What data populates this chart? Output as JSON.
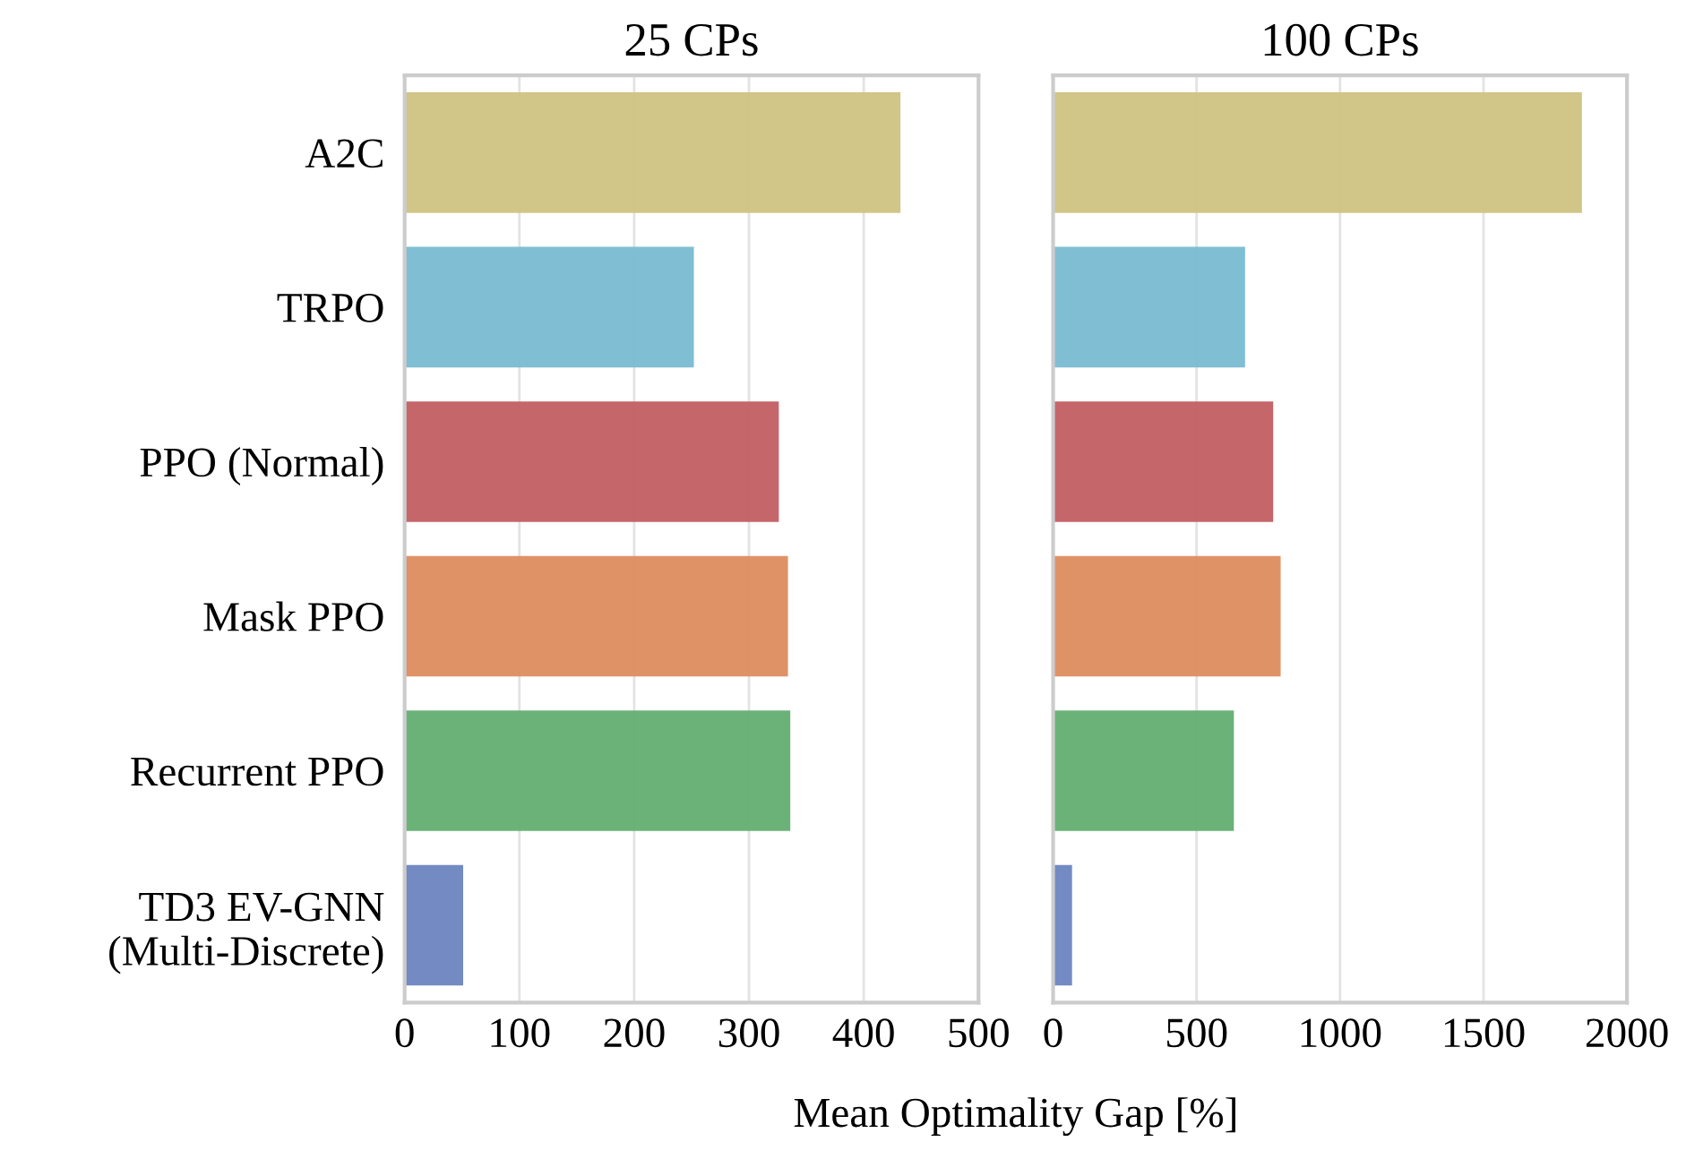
{
  "chart_data": [
    {
      "type": "bar",
      "orientation": "horizontal",
      "title": "25 CPs",
      "xlabel": "Mean Optimality Gap [%]",
      "categories": [
        "A2C",
        "TRPO",
        "PPO (Normal)",
        "Mask PPO",
        "Recurrent PPO",
        "TD3 EV-GNN\n(Multi-Discrete)"
      ],
      "values": [
        432,
        252,
        326,
        334,
        336,
        51
      ],
      "colors": [
        "#cfc282",
        "#79bbd2",
        "#c25e62",
        "#de8c5f",
        "#63ae72",
        "#6b84bf"
      ],
      "xlim": [
        0,
        500
      ],
      "xticks": [
        0,
        100,
        200,
        300,
        400,
        500
      ],
      "grid": "x"
    },
    {
      "type": "bar",
      "orientation": "horizontal",
      "title": "100 CPs",
      "categories": [
        null,
        null,
        null,
        null,
        null,
        null
      ],
      "values": [
        1843,
        669,
        767,
        793,
        630,
        66
      ],
      "colors": [
        "#cfc282",
        "#79bbd2",
        "#c25e62",
        "#de8c5f",
        "#63ae72",
        "#6b84bf"
      ],
      "xlim": [
        0,
        2000
      ],
      "xticks": [
        0,
        500,
        1000,
        1500,
        2000
      ],
      "grid": "x",
      "tick_labels": "x"
    }
  ]
}
